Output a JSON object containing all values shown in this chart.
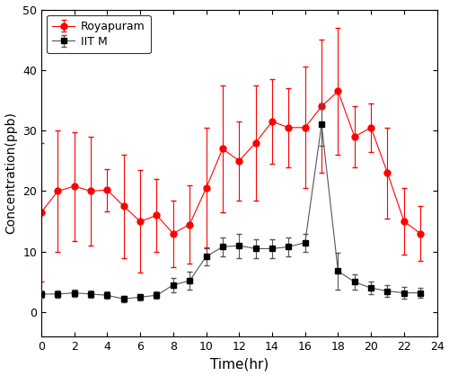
{
  "iitm_x": [
    0,
    1,
    2,
    3,
    4,
    5,
    6,
    7,
    8,
    9,
    10,
    11,
    12,
    13,
    14,
    15,
    16,
    17,
    18,
    19,
    20,
    21,
    22,
    23
  ],
  "iitm_y": [
    3.0,
    3.0,
    3.2,
    3.0,
    2.8,
    2.2,
    2.5,
    2.8,
    4.5,
    5.2,
    9.2,
    10.8,
    11.0,
    10.5,
    10.5,
    10.8,
    11.5,
    31.0,
    6.8,
    5.0,
    4.0,
    3.5,
    3.2,
    3.2
  ],
  "iitm_yerr": [
    0.6,
    0.6,
    0.6,
    0.6,
    0.6,
    0.5,
    0.5,
    0.6,
    1.2,
    1.5,
    1.5,
    1.5,
    2.0,
    1.5,
    1.5,
    1.5,
    1.5,
    3.5,
    3.0,
    1.2,
    1.0,
    1.0,
    1.0,
    0.8
  ],
  "royapuram_x": [
    0,
    1,
    2,
    3,
    4,
    5,
    6,
    7,
    8,
    9,
    10,
    11,
    12,
    13,
    14,
    15,
    16,
    17,
    18,
    19,
    20,
    21,
    22,
    23
  ],
  "royapuram_y": [
    16.5,
    20.0,
    20.8,
    20.0,
    20.2,
    17.5,
    15.0,
    16.0,
    13.0,
    14.5,
    20.5,
    27.0,
    25.0,
    28.0,
    31.5,
    30.5,
    30.5,
    34.0,
    36.5,
    29.0,
    30.5,
    23.0,
    15.0,
    13.0
  ],
  "royapuram_yerr": [
    11.5,
    10.0,
    9.0,
    9.0,
    3.5,
    8.5,
    8.5,
    6.0,
    5.5,
    6.5,
    10.0,
    10.5,
    6.5,
    9.5,
    7.0,
    6.5,
    10.0,
    11.0,
    10.5,
    5.0,
    4.0,
    7.5,
    5.5,
    4.5
  ],
  "iitm_color": "#555555",
  "royapuram_color": "#ff0000",
  "iitm_label": "IIT M",
  "royapuram_label": "Royapuram",
  "xlabel": "Time(hr)",
  "ylabel": "Concentration(ppb)",
  "xlim": [
    0,
    24
  ],
  "ylim": [
    -4,
    50
  ],
  "xticks": [
    0,
    2,
    4,
    6,
    8,
    10,
    12,
    14,
    16,
    18,
    20,
    22,
    24
  ],
  "yticks": [
    0,
    10,
    20,
    30,
    40,
    50
  ],
  "figwidth": 5.0,
  "figheight": 4.18,
  "dpi": 100
}
